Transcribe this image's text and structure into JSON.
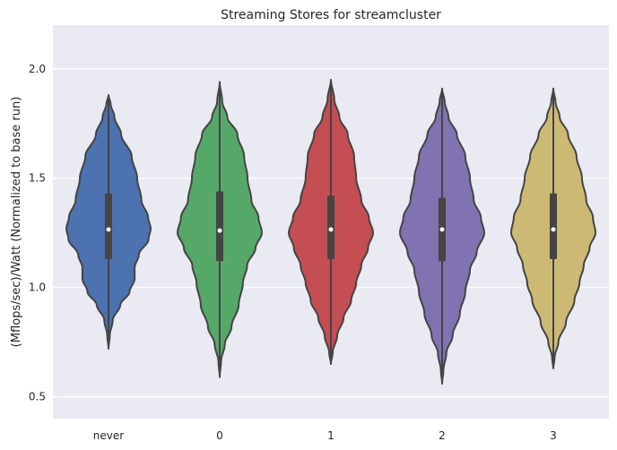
{
  "chart_data": {
    "type": "violin",
    "title": "Streaming Stores for streamcluster",
    "xlabel": "",
    "ylabel": "(Mflops/sec)/Watt (Normalized to base run)",
    "ylim": [
      0.4,
      2.2
    ],
    "yticks": [
      0.5,
      1.0,
      1.5,
      2.0
    ],
    "yticklabels": [
      "0.5",
      "1.0",
      "1.5",
      "2.0"
    ],
    "grid": true,
    "categories": [
      "never",
      "0",
      "1",
      "2",
      "3"
    ],
    "series": [
      {
        "category": "never",
        "color": "#4c72b0",
        "min": 0.72,
        "max": 1.88,
        "q1": 1.13,
        "median": 1.265,
        "q3": 1.43,
        "whisker_low": 0.82,
        "whisker_high": 1.79,
        "profile": [
          [
            0.72,
            0.0
          ],
          [
            0.78,
            0.03
          ],
          [
            0.85,
            0.1
          ],
          [
            0.92,
            0.28
          ],
          [
            0.98,
            0.5
          ],
          [
            1.04,
            0.62
          ],
          [
            1.09,
            0.62
          ],
          [
            1.15,
            0.72
          ],
          [
            1.22,
            0.95
          ],
          [
            1.27,
            1.0
          ],
          [
            1.32,
            0.94
          ],
          [
            1.4,
            0.78
          ],
          [
            1.5,
            0.68
          ],
          [
            1.6,
            0.55
          ],
          [
            1.7,
            0.3
          ],
          [
            1.78,
            0.14
          ],
          [
            1.84,
            0.05
          ],
          [
            1.88,
            0.0
          ]
        ]
      },
      {
        "category": "0",
        "color": "#55a868",
        "min": 0.59,
        "max": 1.94,
        "q1": 1.12,
        "median": 1.26,
        "q3": 1.44,
        "whisker_low": 0.72,
        "whisker_high": 1.8,
        "profile": [
          [
            0.59,
            0.0
          ],
          [
            0.66,
            0.03
          ],
          [
            0.74,
            0.12
          ],
          [
            0.82,
            0.28
          ],
          [
            0.92,
            0.45
          ],
          [
            1.02,
            0.55
          ],
          [
            1.1,
            0.65
          ],
          [
            1.18,
            0.85
          ],
          [
            1.25,
            1.0
          ],
          [
            1.32,
            0.92
          ],
          [
            1.4,
            0.75
          ],
          [
            1.5,
            0.66
          ],
          [
            1.6,
            0.58
          ],
          [
            1.7,
            0.42
          ],
          [
            1.78,
            0.18
          ],
          [
            1.85,
            0.06
          ],
          [
            1.94,
            0.0
          ]
        ]
      },
      {
        "category": "1",
        "color": "#c44e52",
        "min": 0.65,
        "max": 1.95,
        "q1": 1.13,
        "median": 1.265,
        "q3": 1.42,
        "whisker_low": 0.74,
        "whisker_high": 1.86,
        "profile": [
          [
            0.65,
            0.0
          ],
          [
            0.7,
            0.04
          ],
          [
            0.78,
            0.15
          ],
          [
            0.86,
            0.3
          ],
          [
            0.94,
            0.48
          ],
          [
            1.02,
            0.6
          ],
          [
            1.1,
            0.72
          ],
          [
            1.18,
            0.88
          ],
          [
            1.25,
            1.0
          ],
          [
            1.32,
            0.9
          ],
          [
            1.4,
            0.72
          ],
          [
            1.5,
            0.6
          ],
          [
            1.6,
            0.55
          ],
          [
            1.7,
            0.4
          ],
          [
            1.78,
            0.2
          ],
          [
            1.86,
            0.08
          ],
          [
            1.95,
            0.0
          ]
        ]
      },
      {
        "category": "2",
        "color": "#8172b2",
        "min": 0.56,
        "max": 1.91,
        "q1": 1.12,
        "median": 1.265,
        "q3": 1.41,
        "whisker_low": 0.72,
        "whisker_high": 1.8,
        "profile": [
          [
            0.56,
            0.0
          ],
          [
            0.62,
            0.03
          ],
          [
            0.7,
            0.1
          ],
          [
            0.78,
            0.25
          ],
          [
            0.88,
            0.42
          ],
          [
            0.98,
            0.55
          ],
          [
            1.08,
            0.66
          ],
          [
            1.16,
            0.82
          ],
          [
            1.25,
            1.0
          ],
          [
            1.32,
            0.92
          ],
          [
            1.4,
            0.75
          ],
          [
            1.5,
            0.66
          ],
          [
            1.6,
            0.55
          ],
          [
            1.7,
            0.35
          ],
          [
            1.78,
            0.15
          ],
          [
            1.85,
            0.06
          ],
          [
            1.91,
            0.0
          ]
        ]
      },
      {
        "category": "3",
        "color": "#ccb974",
        "min": 0.63,
        "max": 1.91,
        "q1": 1.13,
        "median": 1.265,
        "q3": 1.43,
        "whisker_low": 0.73,
        "whisker_high": 1.8,
        "profile": [
          [
            0.63,
            0.0
          ],
          [
            0.68,
            0.03
          ],
          [
            0.75,
            0.12
          ],
          [
            0.84,
            0.3
          ],
          [
            0.94,
            0.5
          ],
          [
            1.02,
            0.62
          ],
          [
            1.1,
            0.72
          ],
          [
            1.18,
            0.86
          ],
          [
            1.25,
            1.0
          ],
          [
            1.32,
            0.94
          ],
          [
            1.4,
            0.78
          ],
          [
            1.5,
            0.68
          ],
          [
            1.6,
            0.55
          ],
          [
            1.7,
            0.35
          ],
          [
            1.78,
            0.15
          ],
          [
            1.85,
            0.05
          ],
          [
            1.91,
            0.0
          ]
        ]
      }
    ]
  }
}
